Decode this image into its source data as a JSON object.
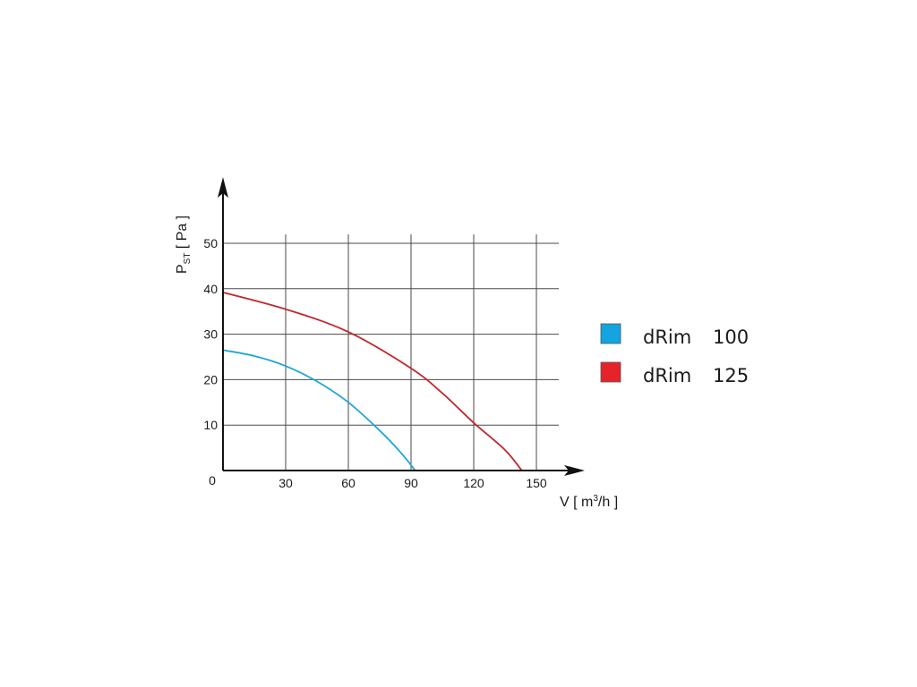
{
  "chart_data": {
    "type": "line",
    "x_axis": {
      "label_main": "V [ m",
      "label_sup": "3",
      "label_tail": "/h ]",
      "ticks": [
        0,
        30,
        60,
        90,
        120,
        150
      ],
      "tick_labels": [
        "0",
        "30",
        "60",
        "90",
        "120",
        "150"
      ],
      "range": [
        0,
        160
      ]
    },
    "y_axis": {
      "label_main": "P",
      "label_sub": "ST",
      "label_tail": " [ Pa ]",
      "ticks": [
        10,
        20,
        30,
        40,
        50
      ],
      "tick_labels": [
        "10",
        "20",
        "30",
        "40",
        "50"
      ],
      "range": [
        0,
        55
      ]
    },
    "grid": true,
    "legend_position": "right",
    "series": [
      {
        "name": "dRim",
        "model": "100",
        "color": "#1fa6d8",
        "swatch_color": "#12a5e0",
        "x": [
          0,
          15,
          30,
          45,
          60,
          75,
          85,
          92
        ],
        "y": [
          26.5,
          25.2,
          23,
          19.6,
          15,
          8.8,
          4,
          0
        ]
      },
      {
        "name": "dRim",
        "model": "125",
        "color": "#c0272d",
        "swatch_color": "#e5232a",
        "x": [
          0,
          30,
          60,
          90,
          105,
          120,
          135,
          143
        ],
        "y": [
          39.2,
          35.5,
          30.5,
          22.5,
          17,
          10.5,
          4.5,
          0
        ]
      }
    ]
  }
}
